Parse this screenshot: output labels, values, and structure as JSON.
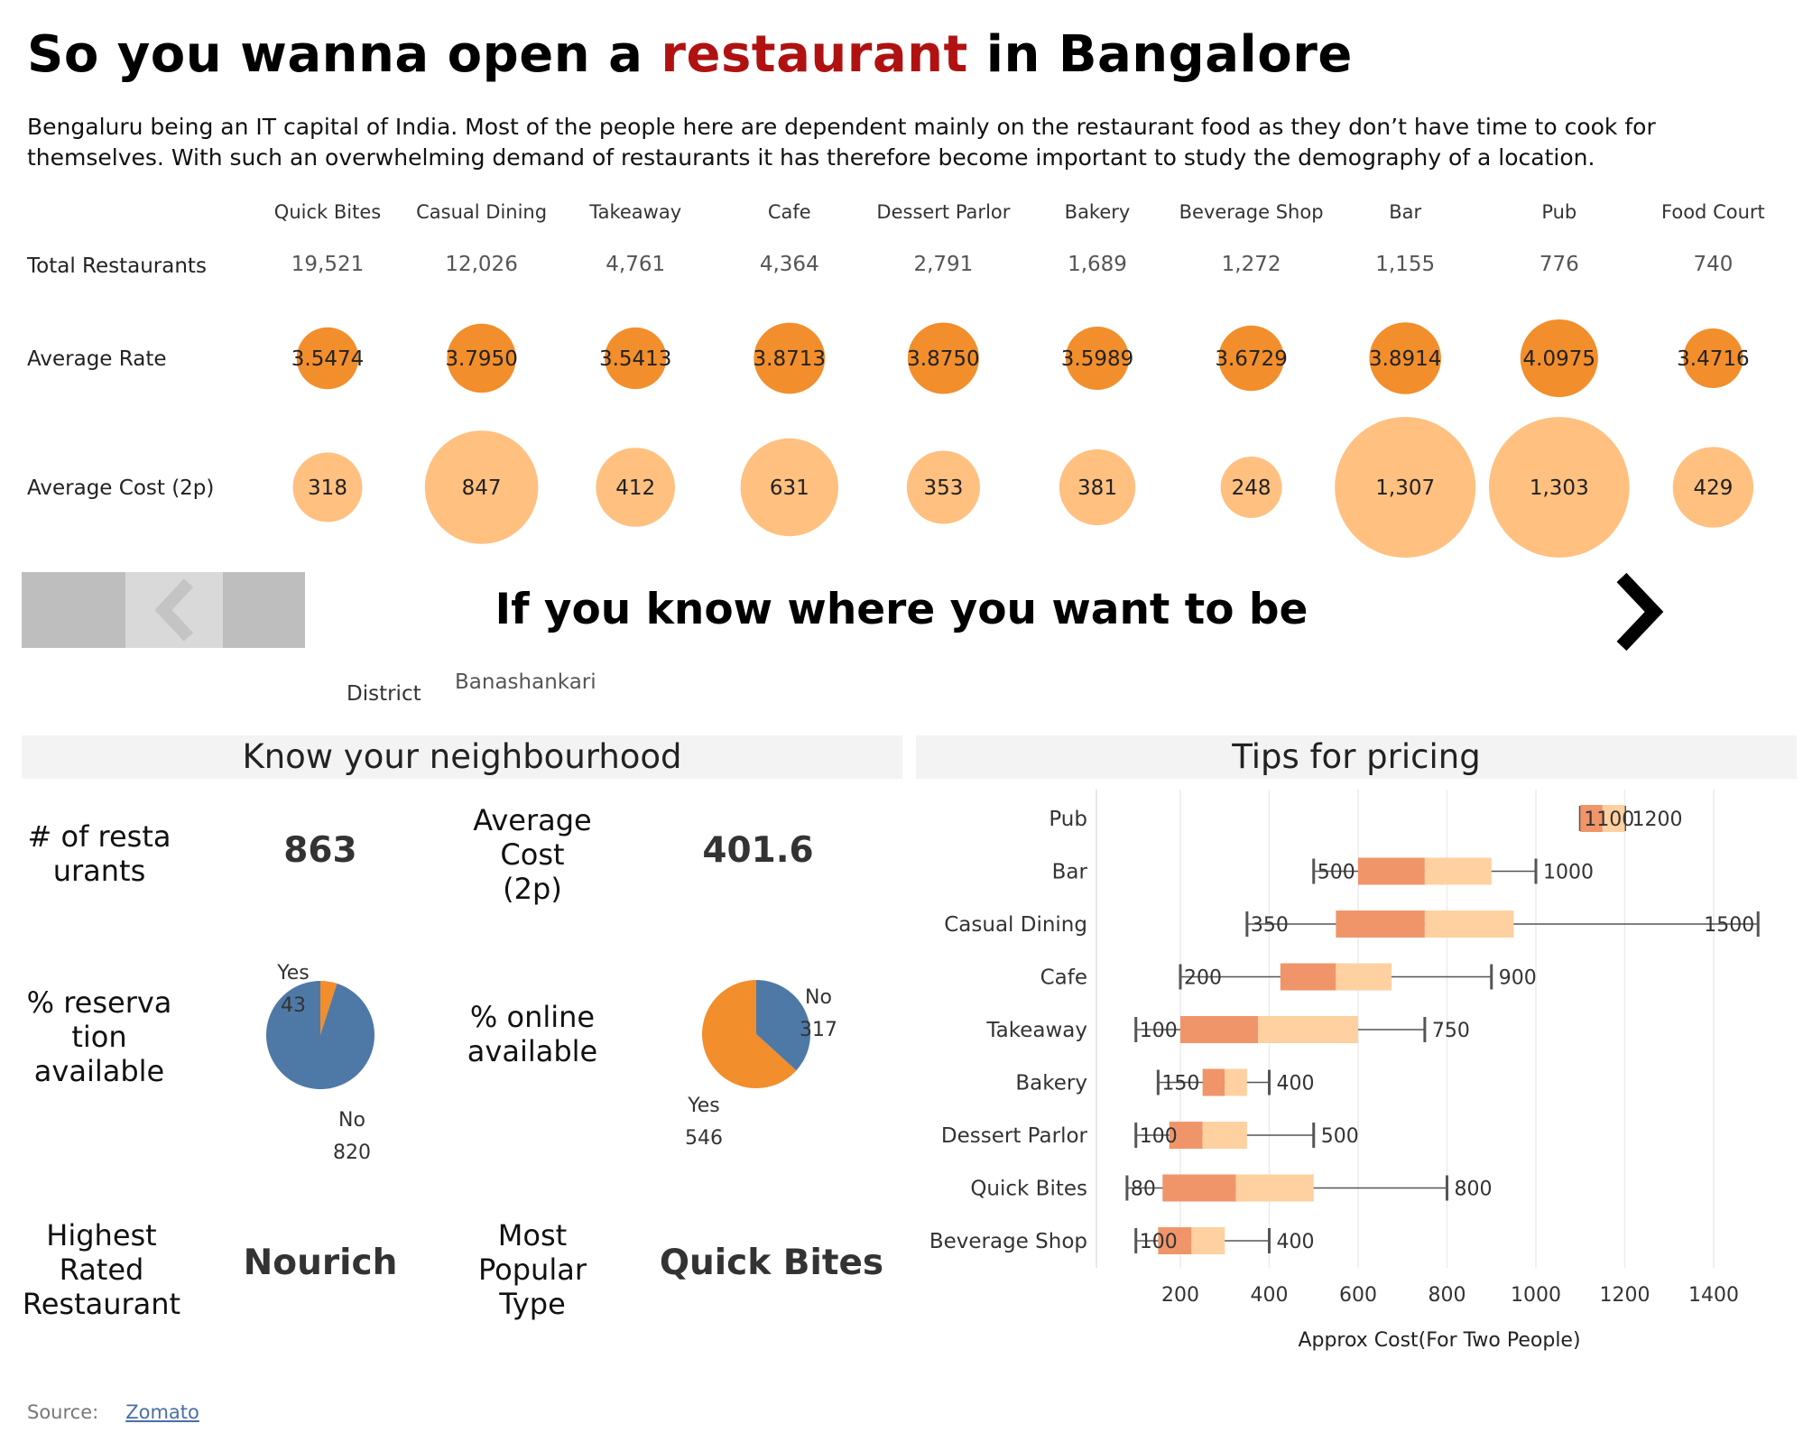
{
  "header": {
    "title_pre": "So you wanna open a ",
    "title_highlight": "restaurant",
    "title_post": " in Bangalore",
    "intro": "Bengaluru being an IT capital of India. Most of the people here are dependent mainly on the restaurant food as they don’t have time to cook for themselves. With such an overwhelming demand of restaurants it has therefore become important to study the demography of a location."
  },
  "colors": {
    "title_highlight": "#b01212",
    "rate_circle": "#f28e2b",
    "cost_circle": "#ffc080",
    "pie_blue": "#4e79a7",
    "pie_orange": "#f28e2b",
    "box_dark": "#f0956a",
    "box_light": "#ffd0a0"
  },
  "nav": {
    "title": "If you know where you want to be",
    "left_icon": "chevron-left-icon",
    "right_icon": "chevron-right-icon"
  },
  "filter": {
    "label": "District",
    "value": "Banashankari"
  },
  "neighbourhood": {
    "title": "Know your neighbourhood",
    "count_label": "# of resta\nurants",
    "count_value": "863",
    "avg_cost_label": "Average\nCost\n(2p)",
    "avg_cost_value": "401.6",
    "reservation_label": "% reserva\ntion\navailable",
    "online_label": "% online\navailable",
    "highest_label": "Highest\nRated\nRestaurant",
    "highest_value": "Nourich",
    "popular_label": "Most\nPopular\nType",
    "popular_value": "Quick Bites"
  },
  "tips": {
    "title": "Tips for pricing"
  },
  "source": {
    "label": "Source:",
    "link": "Zomato"
  },
  "chart_data": [
    {
      "type": "table",
      "categories": [
        "Quick Bites",
        "Casual Dining",
        "Takeaway",
        "Cafe",
        "Dessert Parlor",
        "Bakery",
        "Beverage Shop",
        "Bar",
        "Pub",
        "Food Court"
      ],
      "rows": [
        {
          "label": "Total Restaurants",
          "display": [
            "19,521",
            "12,026",
            "4,761",
            "4,364",
            "2,791",
            "1,689",
            "1,272",
            "1,155",
            "776",
            "740"
          ]
        },
        {
          "label": "Average Rate",
          "display": [
            "3.5474",
            "3.7950",
            "3.5413",
            "3.8713",
            "3.8750",
            "3.5989",
            "3.6729",
            "3.8914",
            "4.0975",
            "3.4716"
          ],
          "values": [
            3.5474,
            3.795,
            3.5413,
            3.8713,
            3.875,
            3.5989,
            3.6729,
            3.8914,
            4.0975,
            3.4716
          ]
        },
        {
          "label": "Average Cost (2p)",
          "display": [
            "318",
            "847",
            "412",
            "631",
            "353",
            "381",
            "248",
            "1,307",
            "1,303",
            "429"
          ],
          "values": [
            318,
            847,
            412,
            631,
            353,
            381,
            248,
            1307,
            1303,
            429
          ]
        }
      ]
    },
    {
      "type": "pie",
      "slices": [
        {
          "label": "Yes",
          "value": 43
        },
        {
          "label": "No",
          "value": 820
        }
      ]
    },
    {
      "type": "pie",
      "slices": [
        {
          "label": "No",
          "value": 317
        },
        {
          "label": "Yes",
          "value": 546
        }
      ]
    },
    {
      "type": "boxplot",
      "xlabel": "Approx Cost(For Two People)",
      "xlim": [
        0,
        1500
      ],
      "xticks": [
        200,
        400,
        600,
        800,
        1000,
        1200,
        1400
      ],
      "grid": true,
      "boxes": [
        {
          "category": "Pub",
          "min": 1100,
          "q1": 1100,
          "median": 1150,
          "q3": 1200,
          "max": 1200
        },
        {
          "category": "Bar",
          "min": 500,
          "q1": 600,
          "median": 750,
          "q3": 900,
          "max": 1000
        },
        {
          "category": "Casual Dining",
          "min": 350,
          "q1": 550,
          "median": 750,
          "q3": 950,
          "max": 1500
        },
        {
          "category": "Cafe",
          "min": 200,
          "q1": 425,
          "median": 550,
          "q3": 675,
          "max": 900
        },
        {
          "category": "Takeaway",
          "min": 100,
          "q1": 200,
          "median": 375,
          "q3": 600,
          "max": 750
        },
        {
          "category": "Bakery",
          "min": 150,
          "q1": 250,
          "median": 300,
          "q3": 350,
          "max": 400
        },
        {
          "category": "Dessert Parlor",
          "min": 100,
          "q1": 175,
          "median": 250,
          "q3": 350,
          "max": 500
        },
        {
          "category": "Quick Bites",
          "min": 80,
          "q1": 160,
          "median": 325,
          "q3": 500,
          "max": 800
        },
        {
          "category": "Beverage Shop",
          "min": 100,
          "q1": 150,
          "median": 225,
          "q3": 300,
          "max": 400
        }
      ]
    }
  ]
}
